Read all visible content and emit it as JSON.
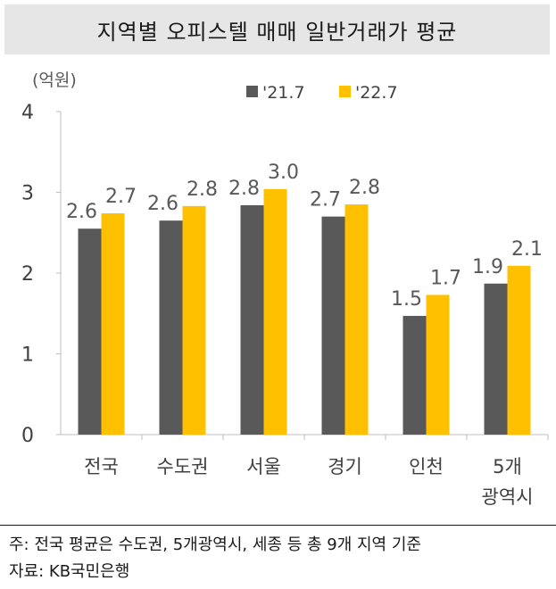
{
  "title": "지역별 오피스텔 매매 일반거래가 평균",
  "notes": {
    "line1": "주: 전국 평균은 수도권, 5개광역시, 세종 등 총 9개 지역 기준",
    "line2": "자료: KB국민은행"
  },
  "chart_data": {
    "type": "bar",
    "title": "지역별 오피스텔 매매 일반거래가 평균",
    "ylabel": "(억원)",
    "xlabel": "",
    "ylim": [
      0,
      4
    ],
    "yticks": [
      "0",
      "1",
      "2",
      "3",
      "4"
    ],
    "categories": [
      [
        "전국"
      ],
      [
        "수도권"
      ],
      [
        "서울"
      ],
      [
        "경기"
      ],
      [
        "인천"
      ],
      [
        "5개",
        "광역시"
      ]
    ],
    "series": [
      {
        "name": "'21.7",
        "color": "#595959",
        "values": [
          2.6,
          2.6,
          2.8,
          2.7,
          1.5,
          1.9
        ]
      },
      {
        "name": "'22.7",
        "color": "#ffc000",
        "values": [
          2.7,
          2.8,
          3.0,
          2.8,
          1.7,
          2.1
        ]
      }
    ],
    "data_labels": [
      [
        "2.6",
        "2.6",
        "2.8",
        "2.7",
        "1.5",
        "1.9"
      ],
      [
        "2.7",
        "2.8",
        "3.0",
        "2.8",
        "1.7",
        "2.1"
      ]
    ],
    "bar_heights": [
      [
        2.55,
        2.65,
        2.84,
        2.7,
        1.47,
        1.87
      ],
      [
        2.74,
        2.83,
        3.04,
        2.85,
        1.73,
        2.09
      ]
    ],
    "legend_position": "top-center",
    "grid": false
  }
}
